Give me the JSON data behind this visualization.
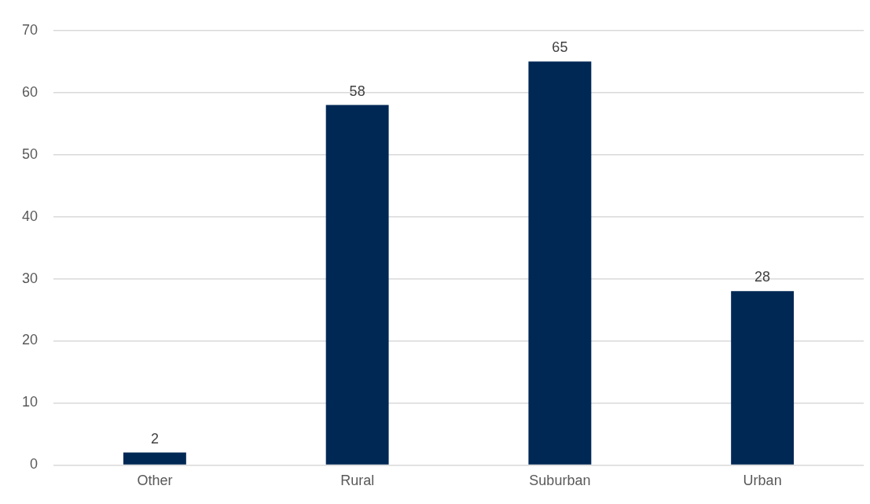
{
  "chart_data": {
    "type": "bar",
    "categories": [
      "Other",
      "Rural",
      "Suburban",
      "Urban"
    ],
    "values": [
      2,
      58,
      65,
      28
    ],
    "color": "#002855",
    "ylim": [
      0,
      70
    ],
    "yticks": [
      0,
      10,
      20,
      30,
      40,
      50,
      60,
      70
    ],
    "grid": "y",
    "data_labels": true,
    "legend": false
  }
}
